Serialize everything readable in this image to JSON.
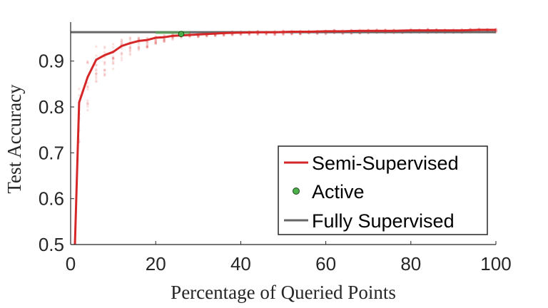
{
  "chart_data": {
    "type": "line",
    "xlabel": "Percentage of Queried Points",
    "ylabel": "Test Accuracy",
    "xlim": [
      0,
      100
    ],
    "ylim": [
      0.5,
      0.985
    ],
    "xticks": [
      "0",
      "20",
      "40",
      "60",
      "80",
      "100"
    ],
    "yticks": [
      "0.5",
      "0.6",
      "0.7",
      "0.8",
      "0.9"
    ],
    "grid": false,
    "legend_position": "bottom-right",
    "series": [
      {
        "name": "Semi-Supervised",
        "color": "#d62728",
        "x": [
          1,
          2,
          4,
          6,
          8,
          10,
          12,
          14,
          16,
          18,
          20,
          22,
          24,
          26,
          28,
          30,
          32,
          34,
          36,
          40,
          44,
          48,
          52,
          56,
          60,
          64,
          68,
          72,
          76,
          80,
          84,
          88,
          92,
          96,
          100
        ],
        "y": [
          0.5,
          0.81,
          0.865,
          0.903,
          0.913,
          0.92,
          0.933,
          0.939,
          0.944,
          0.946,
          0.951,
          0.952,
          0.955,
          0.956,
          0.957,
          0.958,
          0.959,
          0.96,
          0.961,
          0.962,
          0.963,
          0.963,
          0.964,
          0.964,
          0.965,
          0.965,
          0.966,
          0.966,
          0.966,
          0.967,
          0.967,
          0.967,
          0.967,
          0.968,
          0.968
        ]
      },
      {
        "name": "Active",
        "color": "#4daf4a",
        "x": [
          26
        ],
        "y": [
          0.959
        ]
      },
      {
        "name": "Fully Supervised",
        "color": "#666666",
        "x": [
          0,
          100
        ],
        "y": [
          0.963,
          0.963
        ]
      }
    ]
  }
}
